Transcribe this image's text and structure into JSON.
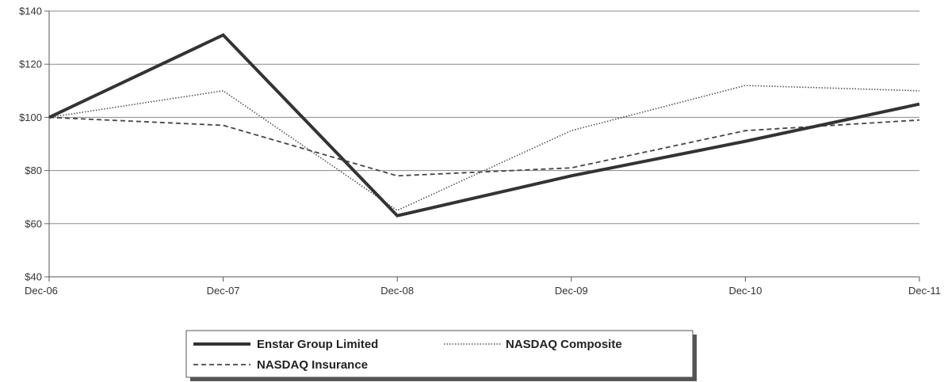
{
  "chart_data": {
    "type": "line",
    "categories": [
      "Dec-06",
      "Dec-07",
      "Dec-08",
      "Dec-09",
      "Dec-10",
      "Dec-11"
    ],
    "yticks": [
      "$40",
      "$60",
      "$80",
      "$100",
      "$120",
      "$140"
    ],
    "ylim": [
      40,
      140
    ],
    "grid": true,
    "legend_position": "bottom",
    "series": [
      {
        "name": "Enstar Group Limited",
        "style": "solid-thick",
        "color": "#333333",
        "values": [
          100,
          131,
          63,
          78,
          91,
          105
        ]
      },
      {
        "name": "NASDAQ Composite",
        "style": "dotted",
        "color": "#555555",
        "values": [
          100,
          110,
          65,
          95,
          112,
          110
        ]
      },
      {
        "name": "NASDAQ Insurance",
        "style": "dashed",
        "color": "#444444",
        "values": [
          100,
          97,
          78,
          81,
          95,
          99
        ]
      }
    ]
  }
}
